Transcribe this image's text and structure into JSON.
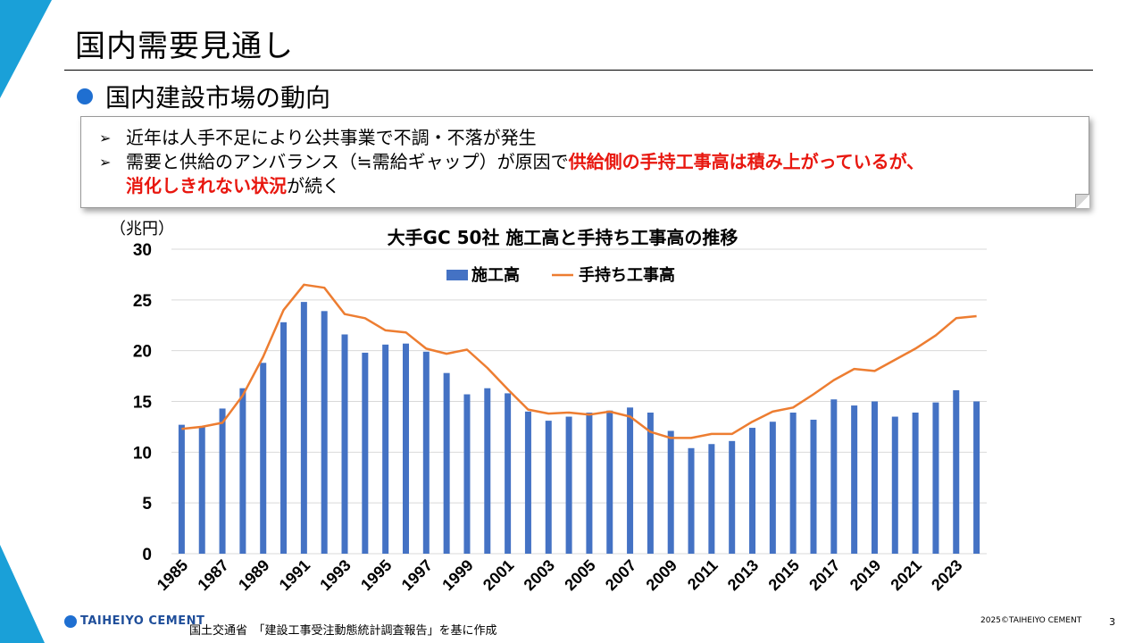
{
  "slide": {
    "title": "国内需要見通し",
    "section": "国内建設市場の動向",
    "notes": [
      {
        "segments": [
          {
            "text": "近年は人手不足により公共事業で不調・不落が発生",
            "emph": false
          }
        ]
      },
      {
        "segments": [
          {
            "text": "需要と供給のアンバランス（≒需給ギャップ）が原因で",
            "emph": false
          },
          {
            "text": "供給側の手持工事高は積み上がっているが、",
            "emph": true
          }
        ]
      },
      {
        "segments": [
          {
            "text": "消化しきれない状況",
            "emph": true
          },
          {
            "text": "が続く",
            "emph": false
          }
        ],
        "continuation": true
      }
    ],
    "emphasis_color": "#e8170f",
    "accent_color": "#1aa0d8"
  },
  "chart_data": {
    "type": "bar",
    "title": "大手GC 50社 施工高と手持ち工事高の推移",
    "ylabel": "（兆円）",
    "ylim": [
      0,
      30
    ],
    "yticks": [
      0,
      5,
      10,
      15,
      20,
      25,
      30
    ],
    "grid": true,
    "legend_position": "top-center",
    "x": [
      1985,
      1986,
      1987,
      1988,
      1989,
      1990,
      1991,
      1992,
      1993,
      1994,
      1995,
      1996,
      1997,
      1998,
      1999,
      2000,
      2001,
      2002,
      2003,
      2004,
      2005,
      2006,
      2007,
      2008,
      2009,
      2010,
      2011,
      2012,
      2013,
      2014,
      2015,
      2016,
      2017,
      2018,
      2019,
      2020,
      2021,
      2022,
      2023,
      2024
    ],
    "xtick_labels": [
      "1985",
      "1987",
      "1989",
      "1991",
      "1993",
      "1995",
      "1997",
      "1999",
      "2001",
      "2003",
      "2005",
      "2007",
      "2009",
      "2011",
      "2013",
      "2015",
      "2017",
      "2019",
      "2021",
      "2023"
    ],
    "series": [
      {
        "name": "施工高",
        "kind": "bar",
        "color": "#4472c4",
        "values": [
          12.7,
          12.5,
          14.3,
          16.3,
          18.8,
          22.8,
          24.8,
          23.9,
          21.6,
          19.8,
          20.6,
          20.7,
          19.9,
          17.8,
          15.7,
          16.3,
          15.8,
          14.0,
          13.1,
          13.5,
          13.9,
          14.1,
          14.4,
          13.9,
          12.1,
          10.4,
          10.8,
          11.1,
          12.4,
          13.0,
          13.9,
          13.2,
          15.2,
          14.6,
          15.0,
          13.5,
          13.9,
          14.9,
          16.1,
          15.0
        ]
      },
      {
        "name": "手持ち工事高",
        "kind": "line",
        "color": "#ed7d31",
        "values": [
          12.3,
          12.5,
          12.9,
          15.6,
          19.4,
          24.0,
          26.5,
          26.2,
          23.6,
          23.2,
          22.0,
          21.8,
          20.2,
          19.7,
          20.1,
          18.3,
          16.2,
          14.2,
          13.8,
          13.9,
          13.7,
          14.0,
          13.5,
          12.0,
          11.4,
          11.4,
          11.8,
          11.8,
          13.0,
          14.0,
          14.4,
          15.7,
          17.1,
          18.2,
          18.0,
          19.1,
          20.2,
          21.5,
          23.2,
          23.4
        ]
      }
    ]
  },
  "footer": {
    "logo_text": "TAIHEIYO CEMENT",
    "source": "国土交通省　「建設工事受注動態統計調査報告」を基に作成",
    "copyright": "2025©TAIHEIYO CEMENT",
    "page_number": "3"
  }
}
